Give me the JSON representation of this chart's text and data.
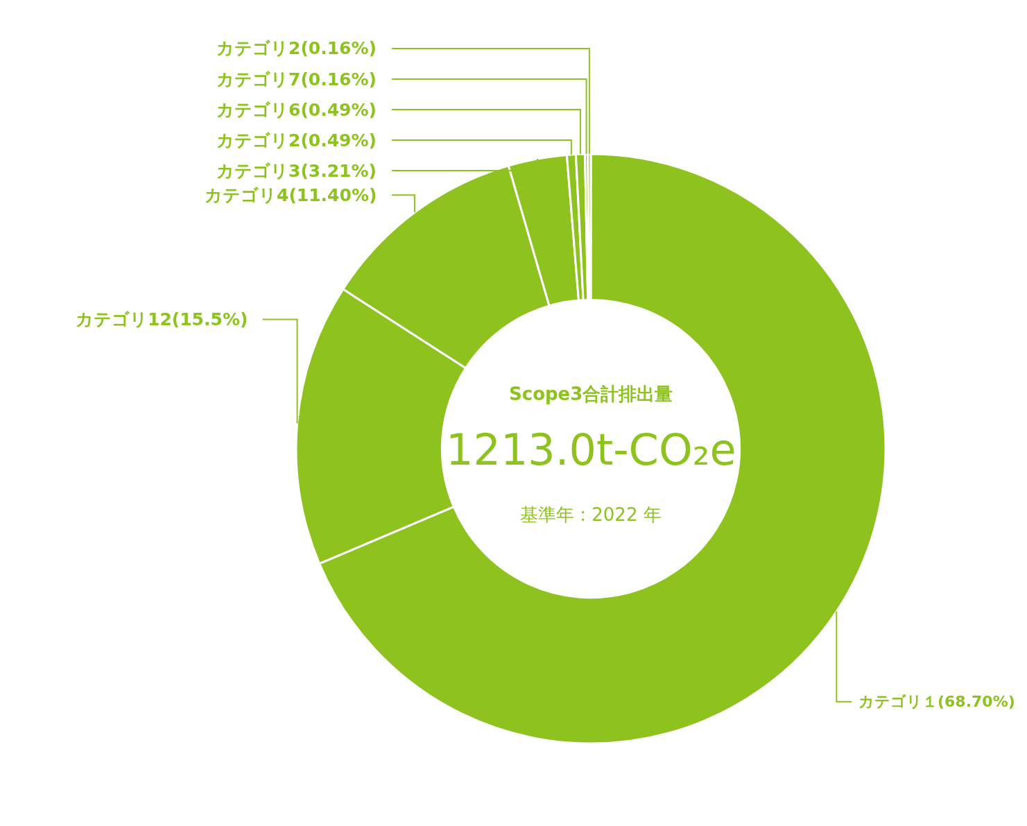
{
  "chart_data": {
    "type": "donut",
    "categories": [
      "カテゴリ１(68.70%)",
      "カテゴリ12(15.5%)",
      "カテゴリ4(11.40%)",
      "カテゴリ3(3.21%)",
      "カテゴリ2(0.49%)",
      "カテゴリ6(0.49%)",
      "カテゴリ7(0.16%)",
      "カテゴリ2(0.16%)"
    ],
    "values": [
      68.7,
      15.5,
      11.4,
      3.21,
      0.49,
      0.49,
      0.16,
      0.16
    ],
    "colors": [
      "#8dc21f",
      "#8dc21f",
      "#8dc21f",
      "#8dc21f",
      "#8dc21f",
      "#8dc21f",
      "#8dc21f",
      "#8dc21f"
    ],
    "annotations": [
      "Scope3合計排出量",
      "1213.0t-CO₂e",
      "基準年 : 2022 年"
    ],
    "legend": false
  }
}
